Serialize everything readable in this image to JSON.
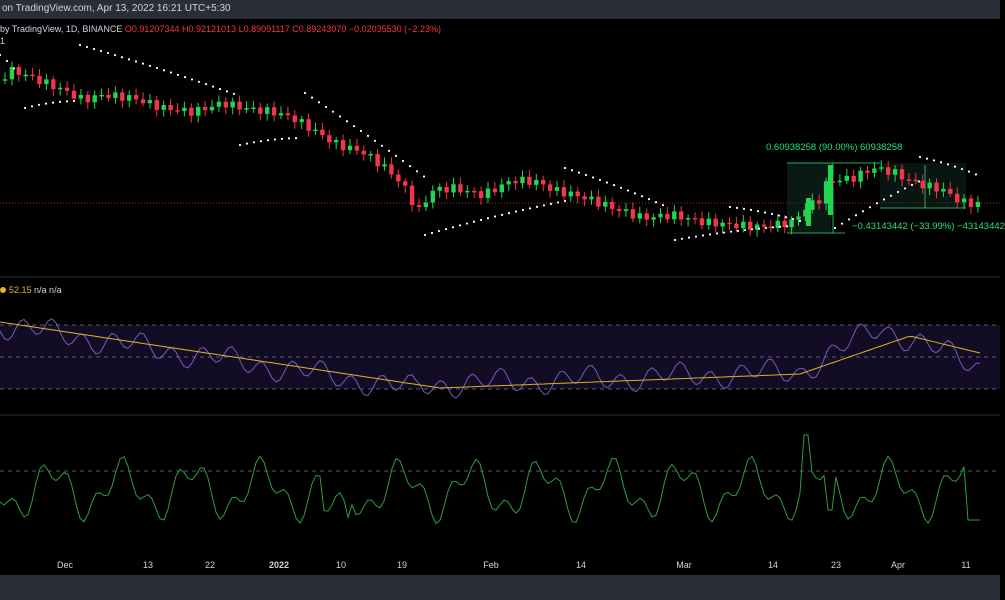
{
  "header": {
    "published": "on TradingView.com, Apr 13, 2022 16:21 UTC+5:30"
  },
  "legend": {
    "prefix": "by TradingView, 1D, BINANCE",
    "open": "O0.91207344",
    "high": "H0.92121013",
    "low": "L0.89091117",
    "close": "C0.89243070",
    "change": "−0.02035530 (−2.23%)",
    "line2": "1"
  },
  "measurement": {
    "top_label": "0.60938258 (90.00%) 60938258",
    "bottom_label": "−0.43143442 (−33.99%) −43143442"
  },
  "rsi": {
    "legend_value": "52.15",
    "legend_na": "n/a n/a",
    "line_color": "#7e57c2",
    "ma_color": "#e0b324"
  },
  "osc": {
    "line_color": "#2e9e3e"
  },
  "colors": {
    "up": "#26a69a",
    "up_candle": "#22d64e",
    "down_candle": "#f23645",
    "sar": "#ffffff",
    "grid_dashed": "#787b86",
    "price_line": "#f23645"
  },
  "x_axis": {
    "labels": [
      "Dec",
      "13",
      "22",
      "2022",
      "10",
      "19",
      "Feb",
      "14",
      "Mar",
      "14",
      "23",
      "Apr",
      "11"
    ]
  },
  "chart_data": {
    "type": "candlestick",
    "title": "",
    "xlabel": "",
    "ylabel": "",
    "x_ticks": [
      "Dec",
      "13",
      "22",
      "2022",
      "10",
      "19",
      "Feb",
      "14",
      "Mar",
      "14",
      "23",
      "Apr",
      "11"
    ],
    "last_bar": {
      "open": 0.91207344,
      "high": 0.92121013,
      "low": 0.89091117,
      "close": 0.8924307
    },
    "measure_up": {
      "change": 0.60938258,
      "percent": 90.0
    },
    "measure_down": {
      "change": -0.43143442,
      "percent": -33.99
    },
    "rsi_last": 52.15
  }
}
